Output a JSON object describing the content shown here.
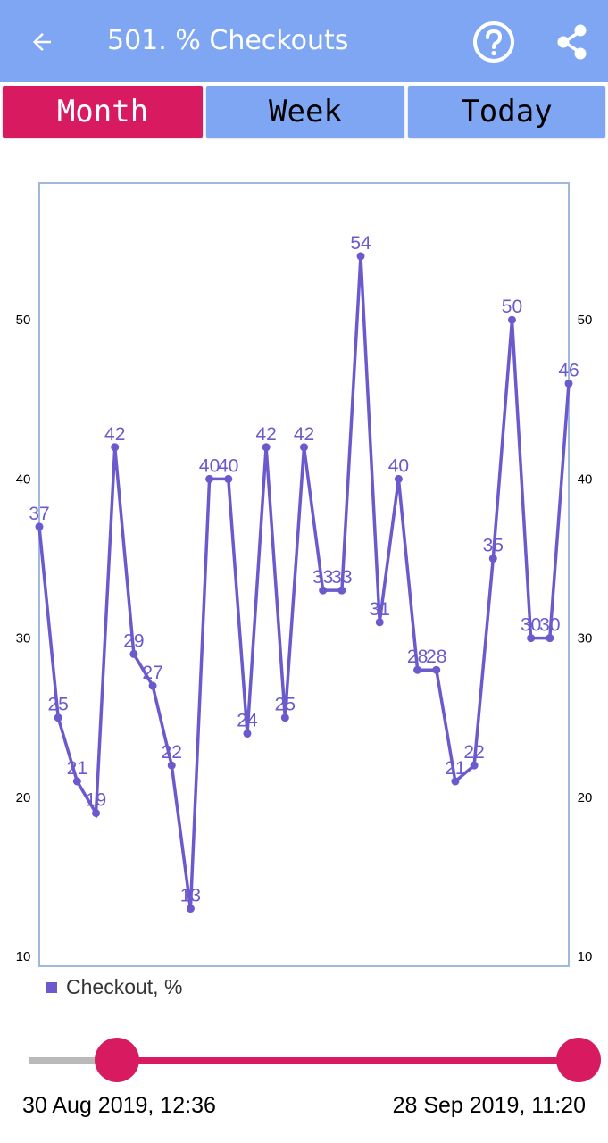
{
  "header": {
    "title": "501. % Checkouts",
    "back_icon": "arrow-back-icon",
    "help_icon": "help-circle-icon",
    "share_icon": "share-icon",
    "bar_color": "#7ea6f2"
  },
  "tabs": [
    {
      "label": "Month",
      "active": true
    },
    {
      "label": "Week",
      "active": false
    },
    {
      "label": "Today",
      "active": false
    }
  ],
  "chart_data": {
    "type": "line",
    "title": "",
    "xlabel": "",
    "ylabel": "",
    "ylim": [
      10,
      57
    ],
    "yticks": [
      "10",
      "20",
      "30",
      "40",
      "50"
    ],
    "grid": false,
    "legend_position": "bottom-left",
    "series": [
      {
        "name": "Checkout, %",
        "color": "#6a5acd",
        "values": [
          37,
          25,
          21,
          19,
          42,
          29,
          27,
          22,
          13,
          40,
          40,
          24,
          42,
          25,
          42,
          33,
          33,
          54,
          31,
          40,
          28,
          28,
          21,
          22,
          35,
          50,
          30,
          30,
          46
        ]
      }
    ]
  },
  "legend": {
    "label": "Checkout, %"
  },
  "range": {
    "start_label": "30 Aug 2019, 12:36",
    "end_label": "28 Sep 2019, 11:20",
    "start_fraction": 0.16,
    "end_fraction": 1.0
  }
}
